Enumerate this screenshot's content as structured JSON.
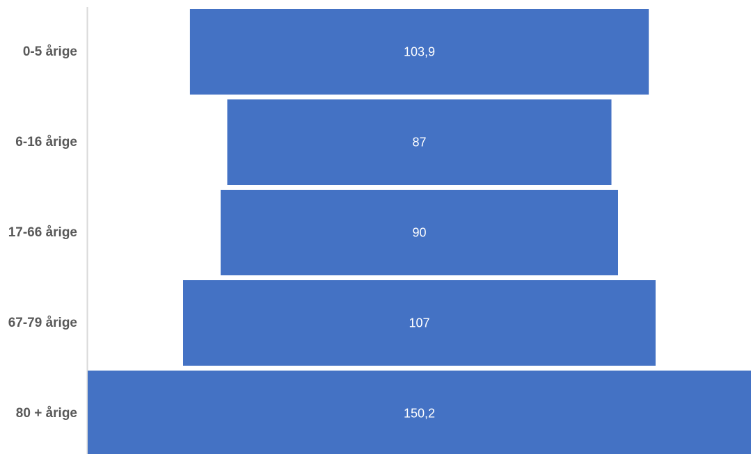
{
  "chart_data": {
    "type": "bar",
    "orientation": "horizontal",
    "layout": "funnel",
    "categories": [
      "0-5 årige",
      "6-16 årige",
      "17-66 årige",
      "67-79 årige",
      "80 + årige"
    ],
    "values": [
      103.9,
      87,
      90,
      107,
      150.2
    ],
    "value_labels": [
      "103,9",
      "87",
      "90",
      "107",
      "150,2"
    ],
    "title": "",
    "xlabel": "",
    "ylabel": "",
    "grid": false,
    "legend": "none",
    "colors": {
      "bar": "#4472C4",
      "axis_line": "#D9D9D9",
      "category_text": "#595959",
      "value_text": "#FFFFFF"
    }
  }
}
